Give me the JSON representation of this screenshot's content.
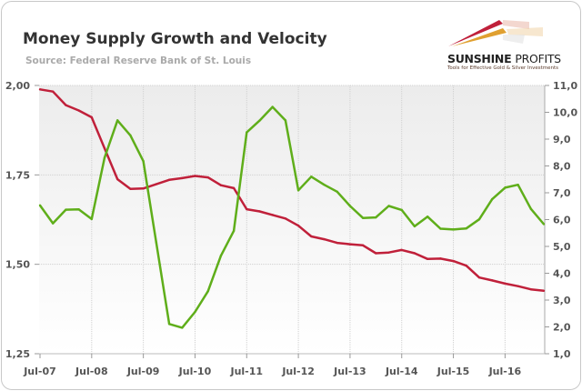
{
  "header": {
    "title": "Money Supply Growth and Velocity",
    "subtitle": "Source: Federal Reserve Bank of St. Louis"
  },
  "logo": {
    "name_bold": "SUNSHINE",
    "name_regular": "PROFITS",
    "tagline": "Tools for Effective Gold & Silver Investments"
  },
  "chart_data": {
    "type": "line",
    "title": "Money Supply Growth and Velocity",
    "grid": true,
    "x_tick_labels": [
      "Jul-07",
      "Jul-08",
      "Jul-09",
      "Jul-10",
      "Jul-11",
      "Jul-12",
      "Jul-13",
      "Jul-14",
      "Jul-15",
      "Jul-16"
    ],
    "x": [
      "Jul-07",
      "Oct-07",
      "Jan-08",
      "Apr-08",
      "Jul-08",
      "Oct-08",
      "Jan-09",
      "Apr-09",
      "Jul-09",
      "Oct-09",
      "Jan-10",
      "Apr-10",
      "Jul-10",
      "Oct-10",
      "Jan-11",
      "Apr-11",
      "Jul-11",
      "Oct-11",
      "Jan-12",
      "Apr-12",
      "Jul-12",
      "Oct-12",
      "Jan-13",
      "Apr-13",
      "Jul-13",
      "Oct-13",
      "Jan-14",
      "Apr-14",
      "Jul-14",
      "Oct-14",
      "Jan-15",
      "Apr-15",
      "Jul-15",
      "Oct-15",
      "Jan-16",
      "Apr-16",
      "Jul-16",
      "Oct-16",
      "Jan-17",
      "Apr-17"
    ],
    "left_axis": {
      "ylim": [
        1.25,
        2.0
      ],
      "tick_labels": [
        "2,00",
        "1,75",
        "1,50",
        "1,25"
      ],
      "ticks": [
        2.0,
        1.75,
        1.5,
        1.25
      ]
    },
    "right_axis": {
      "ylim": [
        1.0,
        11.0
      ],
      "tick_labels": [
        "11,0",
        "10,0",
        "9,0",
        "8,0",
        "7,0",
        "6,0",
        "5,0",
        "4,0",
        "3,0",
        "2,0",
        "1,0"
      ],
      "ticks": [
        11,
        10,
        9,
        8,
        7,
        6,
        5,
        4,
        3,
        2,
        1
      ]
    },
    "series": [
      {
        "axis": "left",
        "color": "#c0203a",
        "values": [
          1.989,
          1.983,
          1.945,
          1.93,
          1.911,
          1.824,
          1.738,
          1.711,
          1.712,
          1.724,
          1.736,
          1.741,
          1.747,
          1.743,
          1.721,
          1.713,
          1.654,
          1.648,
          1.638,
          1.628,
          1.608,
          1.578,
          1.57,
          1.56,
          1.556,
          1.553,
          1.531,
          1.533,
          1.54,
          1.531,
          1.515,
          1.516,
          1.509,
          1.496,
          1.463,
          1.455,
          1.446,
          1.439,
          1.43,
          1.426
        ]
      },
      {
        "axis": "right",
        "color": "#5fae1a",
        "values": [
          6.53,
          5.86,
          6.37,
          6.38,
          6.02,
          8.31,
          9.7,
          9.14,
          8.18,
          5.15,
          2.11,
          1.97,
          2.56,
          3.33,
          4.65,
          5.58,
          9.25,
          9.69,
          10.2,
          9.7,
          7.09,
          7.6,
          7.3,
          7.04,
          6.51,
          6.06,
          6.08,
          6.51,
          6.36,
          5.75,
          6.11,
          5.66,
          5.63,
          5.67,
          6.01,
          6.76,
          7.19,
          7.3,
          6.4,
          5.83
        ]
      }
    ]
  }
}
